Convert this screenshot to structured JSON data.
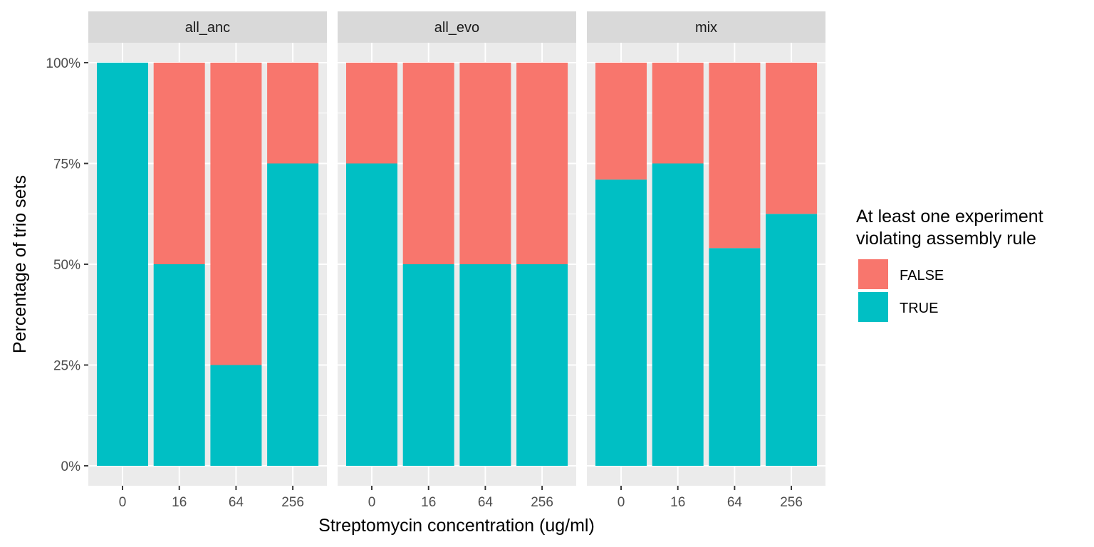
{
  "chart_data": {
    "type": "bar",
    "stacked": true,
    "facets": [
      {
        "name": "all_anc",
        "categories": [
          "0",
          "16",
          "64",
          "256"
        ],
        "series": [
          {
            "name": "FALSE",
            "values": [
              0,
              50,
              75,
              25
            ]
          },
          {
            "name": "TRUE",
            "values": [
              100,
              50,
              25,
              75
            ]
          }
        ]
      },
      {
        "name": "all_evo",
        "categories": [
          "0",
          "16",
          "64",
          "256"
        ],
        "series": [
          {
            "name": "FALSE",
            "values": [
              25,
              50,
              50,
              50
            ]
          },
          {
            "name": "TRUE",
            "values": [
              75,
              50,
              50,
              50
            ]
          }
        ]
      },
      {
        "name": "mix",
        "categories": [
          "0",
          "16",
          "64",
          "256"
        ],
        "series": [
          {
            "name": "FALSE",
            "values": [
              29,
              25,
              46,
              37.5
            ]
          },
          {
            "name": "TRUE",
            "values": [
              71,
              75,
              54,
              62.5
            ]
          }
        ]
      }
    ],
    "xlabel": "Streptomycin concentration (ug/ml)",
    "ylabel": "Percentage of trio sets",
    "yticks": [
      "0%",
      "25%",
      "50%",
      "75%",
      "100%"
    ],
    "ylim": [
      0,
      100
    ],
    "grid": true,
    "legend": {
      "title_lines": [
        "At least one experiment",
        "violating assembly rule"
      ],
      "placement": "right",
      "entries": [
        {
          "label": "FALSE",
          "color": "#F8766D"
        },
        {
          "label": "TRUE",
          "color": "#00BFC4"
        }
      ]
    },
    "colors": {
      "FALSE": "#F8766D",
      "TRUE": "#00BFC4",
      "panel_background": "#EBEBEB",
      "strip_background": "#D9D9D9",
      "grid": "#FFFFFF"
    }
  }
}
